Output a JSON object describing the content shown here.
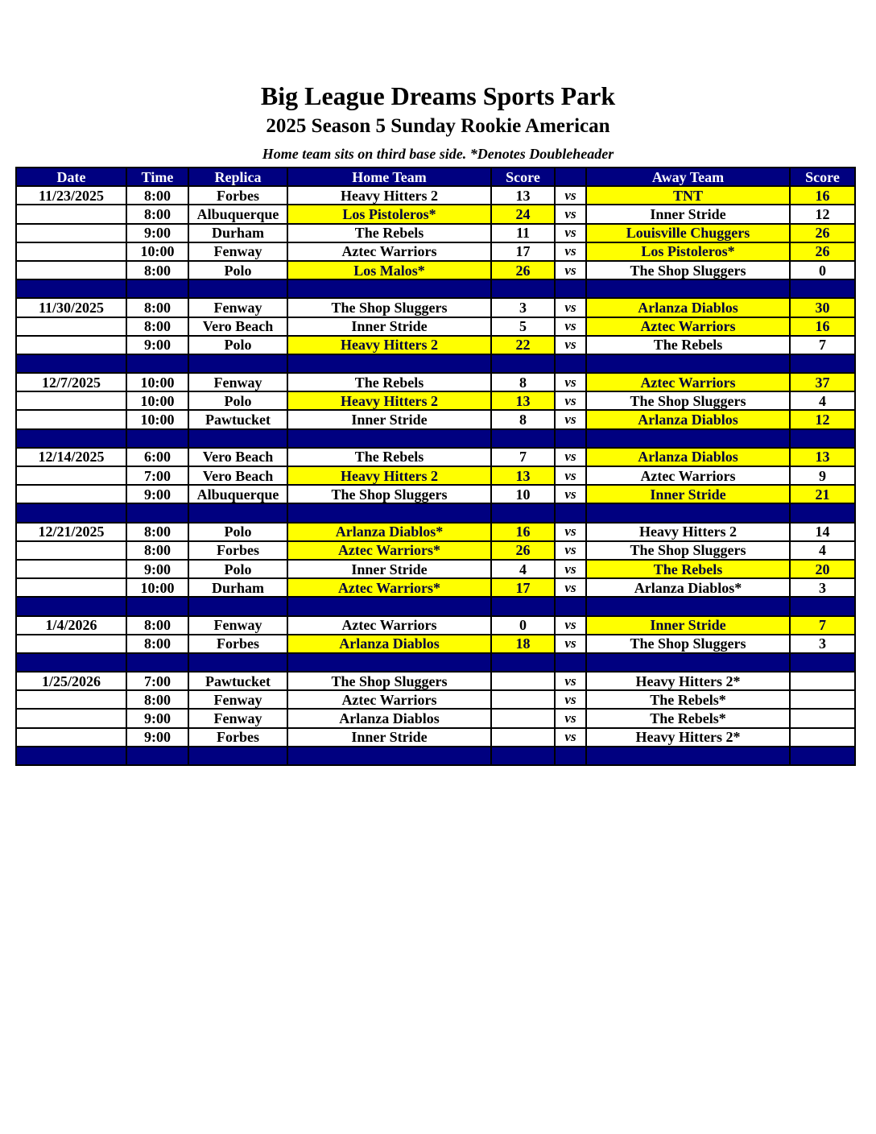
{
  "header": {
    "title": "Big League Dreams Sports Park",
    "subtitle": "2025 Season 5 Sunday Rookie American",
    "note": "Home team sits on third base side.  *Denotes Doubleheader"
  },
  "colors": {
    "header_bg": "#000080",
    "winner_highlight": "#ffff00"
  },
  "columns": [
    "Date",
    "Time",
    "Replica",
    "Home Team",
    "Score",
    "",
    "Away Team",
    "Score"
  ],
  "vs_label": "vs",
  "rows": [
    {
      "date": "11/23/2025",
      "time": "8:00",
      "replica": "Forbes",
      "home": "Heavy Hitters 2",
      "home_score": "13",
      "away": "TNT",
      "away_score": "16",
      "winner": "away"
    },
    {
      "date": "",
      "time": "8:00",
      "replica": "Albuquerque",
      "home": "Los Pistoleros*",
      "home_score": "24",
      "away": "Inner Stride",
      "away_score": "12",
      "winner": "home"
    },
    {
      "date": "",
      "time": "9:00",
      "replica": "Durham",
      "home": "The Rebels",
      "home_score": "11",
      "away": "Louisville Chuggers",
      "away_score": "26",
      "winner": "away"
    },
    {
      "date": "",
      "time": "10:00",
      "replica": "Fenway",
      "home": "Aztec Warriors",
      "home_score": "17",
      "away": "Los Pistoleros*",
      "away_score": "26",
      "winner": "away"
    },
    {
      "date": "",
      "time": "8:00",
      "replica": "Polo",
      "home": "Los Malos*",
      "home_score": "26",
      "away": "The Shop Sluggers",
      "away_score": "0",
      "winner": "home"
    },
    {
      "separator": true
    },
    {
      "date": "11/30/2025",
      "time": "8:00",
      "replica": "Fenway",
      "home": "The Shop Sluggers",
      "home_score": "3",
      "away": "Arlanza Diablos",
      "away_score": "30",
      "winner": "away"
    },
    {
      "date": "",
      "time": "8:00",
      "replica": "Vero Beach",
      "home": "Inner Stride",
      "home_score": "5",
      "away": "Aztec Warriors",
      "away_score": "16",
      "winner": "away"
    },
    {
      "date": "",
      "time": "9:00",
      "replica": "Polo",
      "home": "Heavy Hitters 2",
      "home_score": "22",
      "away": "The Rebels",
      "away_score": "7",
      "winner": "home"
    },
    {
      "separator": true
    },
    {
      "date": "12/7/2025",
      "time": "10:00",
      "replica": "Fenway",
      "home": "The Rebels",
      "home_score": "8",
      "away": "Aztec Warriors",
      "away_score": "37",
      "winner": "away"
    },
    {
      "date": "",
      "time": "10:00",
      "replica": "Polo",
      "home": "Heavy Hitters 2",
      "home_score": "13",
      "away": "The Shop Sluggers",
      "away_score": "4",
      "winner": "home"
    },
    {
      "date": "",
      "time": "10:00",
      "replica": "Pawtucket",
      "home": "Inner Stride",
      "home_score": "8",
      "away": "Arlanza Diablos",
      "away_score": "12",
      "winner": "away"
    },
    {
      "separator": true
    },
    {
      "date": "12/14/2025",
      "time": "6:00",
      "replica": "Vero Beach",
      "home": "The Rebels",
      "home_score": "7",
      "away": "Arlanza Diablos",
      "away_score": "13",
      "winner": "away"
    },
    {
      "date": "",
      "time": "7:00",
      "replica": "Vero Beach",
      "home": "Heavy Hitters 2",
      "home_score": "13",
      "away": "Aztec Warriors",
      "away_score": "9",
      "winner": "home"
    },
    {
      "date": "",
      "time": "9:00",
      "replica": "Albuquerque",
      "home": "The Shop Sluggers",
      "home_score": "10",
      "away": "Inner Stride",
      "away_score": "21",
      "winner": "away"
    },
    {
      "separator": true
    },
    {
      "date": "12/21/2025",
      "time": "8:00",
      "replica": "Polo",
      "home": "Arlanza Diablos*",
      "home_score": "16",
      "away": "Heavy Hitters 2",
      "away_score": "14",
      "winner": "home"
    },
    {
      "date": "",
      "time": "8:00",
      "replica": "Forbes",
      "home": "Aztec Warriors*",
      "home_score": "26",
      "away": "The Shop Sluggers",
      "away_score": "4",
      "winner": "home"
    },
    {
      "date": "",
      "time": "9:00",
      "replica": "Polo",
      "home": "Inner Stride",
      "home_score": "4",
      "away": "The Rebels",
      "away_score": "20",
      "winner": "away"
    },
    {
      "date": "",
      "time": "10:00",
      "replica": "Durham",
      "home": "Aztec Warriors*",
      "home_score": "17",
      "away": "Arlanza Diablos*",
      "away_score": "3",
      "winner": "home"
    },
    {
      "separator": true
    },
    {
      "date": "1/4/2026",
      "time": "8:00",
      "replica": "Fenway",
      "home": "Aztec Warriors",
      "home_score": "0",
      "away": "Inner Stride",
      "away_score": "7",
      "winner": "away"
    },
    {
      "date": "",
      "time": "8:00",
      "replica": "Forbes",
      "home": "Arlanza Diablos",
      "home_score": "18",
      "away": "The Shop Sluggers",
      "away_score": "3",
      "winner": "home"
    },
    {
      "separator": true
    },
    {
      "date": "1/25/2026",
      "time": "7:00",
      "replica": "Pawtucket",
      "home": "The Shop Sluggers",
      "home_score": "",
      "away": "Heavy Hitters 2*",
      "away_score": "",
      "winner": ""
    },
    {
      "date": "",
      "time": "8:00",
      "replica": "Fenway",
      "home": "Aztec Warriors",
      "home_score": "",
      "away": "The Rebels*",
      "away_score": "",
      "winner": ""
    },
    {
      "date": "",
      "time": "9:00",
      "replica": "Fenway",
      "home": "Arlanza Diablos",
      "home_score": "",
      "away": "The Rebels*",
      "away_score": "",
      "winner": ""
    },
    {
      "date": "",
      "time": "9:00",
      "replica": "Forbes",
      "home": "Inner Stride",
      "home_score": "",
      "away": "Heavy Hitters 2*",
      "away_score": "",
      "winner": ""
    },
    {
      "separator": true
    }
  ]
}
